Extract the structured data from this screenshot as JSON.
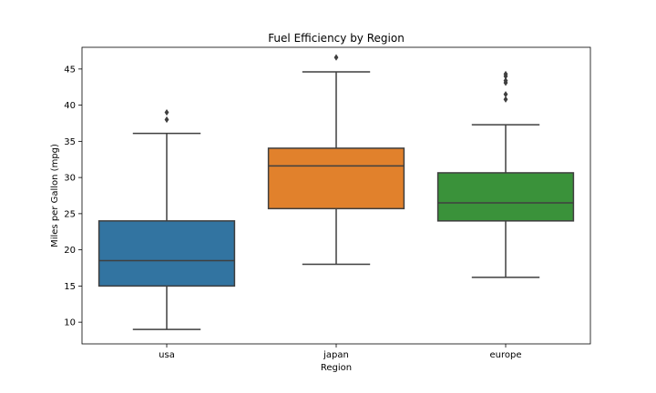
{
  "chart_data": {
    "type": "box",
    "title": "Fuel Efficiency by Region",
    "xlabel": "Region",
    "ylabel": "Miles per Gallon (mpg)",
    "ylim": [
      7.0,
      48.0
    ],
    "yticks": [
      10,
      15,
      20,
      25,
      30,
      35,
      40,
      45
    ],
    "grid": false,
    "categories": [
      "usa",
      "japan",
      "europe"
    ],
    "boxes": [
      {
        "category": "usa",
        "color": "#3274a1",
        "whisker_low": 9.0,
        "q1": 15.0,
        "median": 18.5,
        "q3": 24.0,
        "whisker_high": 36.1,
        "outliers": [
          38.0,
          39.0
        ]
      },
      {
        "category": "japan",
        "color": "#e1812c",
        "whisker_low": 18.0,
        "q1": 25.7,
        "median": 31.6,
        "q3": 34.05,
        "whisker_high": 44.6,
        "outliers": [
          46.6
        ]
      },
      {
        "category": "europe",
        "color": "#3a923a",
        "whisker_low": 16.2,
        "q1": 24.0,
        "median": 26.5,
        "q3": 30.65,
        "whisker_high": 37.3,
        "outliers": [
          40.8,
          41.5,
          43.1,
          43.4,
          44.0,
          44.3
        ]
      }
    ]
  }
}
